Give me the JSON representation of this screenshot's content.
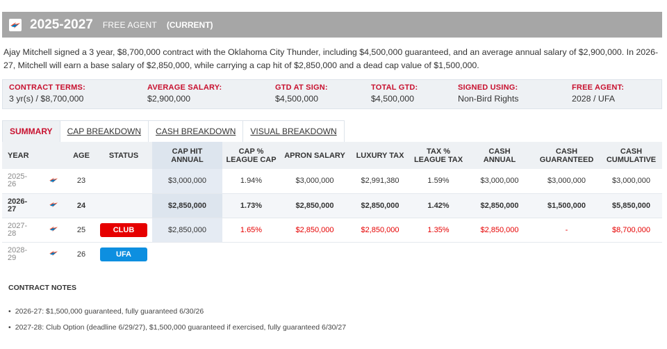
{
  "header": {
    "years": "2025-2027",
    "status": "FREE AGENT",
    "current": "(CURRENT)"
  },
  "description": "Ajay Mitchell signed a 3 year, $8,700,000 contract with the Oklahoma City Thunder, including $4,500,000 guaranteed, and an average annual salary of $2,900,000. In 2026-27, Mitchell will earn a base salary of $2,850,000, while carrying a cap hit of $2,850,000 and a dead cap value of $1,500,000.",
  "terms": [
    {
      "label": "CONTRACT TERMS:",
      "value": "3 yr(s) / $8,700,000"
    },
    {
      "label": "AVERAGE SALARY:",
      "value": "$2,900,000"
    },
    {
      "label": "GTD AT SIGN:",
      "value": "$4,500,000"
    },
    {
      "label": "TOTAL GTD:",
      "value": "$4,500,000"
    },
    {
      "label": "SIGNED USING:",
      "value": "Non-Bird Rights"
    },
    {
      "label": "FREE AGENT:",
      "value": "2028 / UFA"
    }
  ],
  "tabs": [
    "SUMMARY",
    "CAP BREAKDOWN",
    "CASH BREAKDOWN",
    "VISUAL BREAKDOWN"
  ],
  "table": {
    "headers": {
      "year": "YEAR",
      "age": "AGE",
      "status": "STATUS",
      "cap_hit_1": "CAP HIT",
      "cap_hit_2": "ANNUAL",
      "cap_pct_1": "CAP %",
      "cap_pct_2": "LEAGUE CAP",
      "apron": "APRON SALARY",
      "lux": "LUXURY TAX",
      "tax_pct_1": "TAX %",
      "tax_pct_2": "LEAGUE TAX",
      "cash_annual_1": "CASH",
      "cash_annual_2": "ANNUAL",
      "cash_gtd_1": "CASH",
      "cash_gtd_2": "GUARANTEED",
      "cash_cum_1": "CASH",
      "cash_cum_2": "CUMULATIVE"
    },
    "rows": [
      {
        "y1": "2025-",
        "y2": "26",
        "age": "23",
        "status": "",
        "cap_hit": "$3,000,000",
        "cap_pct": "1.94%",
        "apron": "$3,000,000",
        "lux": "$2,991,380",
        "tax_pct": "1.59%",
        "cash_annual": "$3,000,000",
        "cash_gtd": "$3,000,000",
        "cash_cum": "$3,000,000"
      },
      {
        "y1": "2026-",
        "y2": "27",
        "age": "24",
        "status": "",
        "cap_hit": "$2,850,000",
        "cap_pct": "1.73%",
        "apron": "$2,850,000",
        "lux": "$2,850,000",
        "tax_pct": "1.42%",
        "cash_annual": "$2,850,000",
        "cash_gtd": "$1,500,000",
        "cash_cum": "$5,850,000"
      },
      {
        "y1": "2027-",
        "y2": "28",
        "age": "25",
        "status": "CLUB",
        "cap_hit": "$2,850,000",
        "cap_pct": "1.65%",
        "apron": "$2,850,000",
        "lux": "$2,850,000",
        "tax_pct": "1.35%",
        "cash_annual": "$2,850,000",
        "cash_gtd": "-",
        "cash_cum": "$8,700,000"
      },
      {
        "y1": "2028-",
        "y2": "29",
        "age": "26",
        "status": "UFA"
      }
    ]
  },
  "notes": {
    "title": "CONTRACT NOTES",
    "items": [
      "2026-27: $1,500,000 guaranteed, fully guaranteed 6/30/26",
      "2027-28: Club Option (deadline 6/29/27), $1,500,000 guaranteed if exercised, fully guaranteed 6/30/27"
    ]
  },
  "colors": {
    "accent_red": "#c8102e",
    "club_badge": "#e60000",
    "ufa_badge": "#0d8fe0",
    "header_bg": "#a6a6a6"
  },
  "icons": {
    "team_logo": "thunder-logo-icon"
  }
}
